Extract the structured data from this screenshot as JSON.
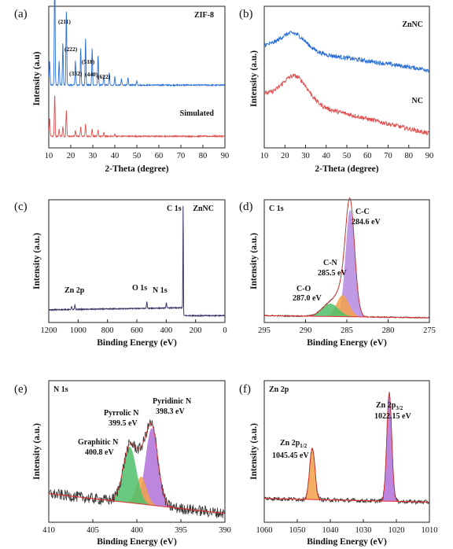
{
  "chart_data": [
    {
      "id": "a",
      "type": "line",
      "panel_label": "(a)",
      "xlabel": "2-Theta (degree)",
      "ylabel": "Intensity (a.u)",
      "xlim": [
        10,
        90
      ],
      "xticks": [
        10,
        20,
        30,
        40,
        50,
        60,
        70,
        80,
        90
      ],
      "legend": [
        "ZIF-8",
        "Simulated"
      ],
      "peak_labels": [
        {
          "text": "(211)",
          "x": 12.7
        },
        {
          "text": "(222)",
          "x": 18.0
        },
        {
          "text": "(332)",
          "x": 24.5
        },
        {
          "text": "(518)",
          "x": 26.7
        },
        {
          "text": "(440)",
          "x": 29.7
        },
        {
          "text": "(622)",
          "x": 32.4
        }
      ],
      "series": [
        {
          "name": "ZIF-8",
          "color": "#2a6fd6",
          "baseline": 0.42,
          "peaks": [
            [
              7.3,
              0.32
            ],
            [
              10.4,
              0.2
            ],
            [
              12.7,
              1.0
            ],
            [
              14.7,
              0.2
            ],
            [
              16.4,
              0.35
            ],
            [
              18.0,
              0.62
            ],
            [
              22.1,
              0.2
            ],
            [
              24.5,
              0.3
            ],
            [
              26.7,
              0.38
            ],
            [
              29.7,
              0.3
            ],
            [
              32.4,
              0.25
            ],
            [
              35,
              0.08
            ],
            [
              37.5,
              0.1
            ],
            [
              40,
              0.07
            ],
            [
              43,
              0.05
            ],
            [
              46,
              0.06
            ],
            [
              50,
              0.04
            ]
          ]
        },
        {
          "name": "Simulated",
          "color": "#e05050",
          "baseline": 0.0,
          "peaks": [
            [
              7.3,
              0.05
            ],
            [
              10.4,
              0.15
            ],
            [
              12.7,
              0.35
            ],
            [
              14.7,
              0.06
            ],
            [
              16.4,
              0.08
            ],
            [
              18.0,
              0.22
            ],
            [
              22.1,
              0.05
            ],
            [
              24.5,
              0.08
            ],
            [
              26.7,
              0.1
            ],
            [
              29.7,
              0.06
            ],
            [
              32.4,
              0.05
            ],
            [
              35,
              0.03
            ],
            [
              40,
              0.02
            ]
          ]
        }
      ]
    },
    {
      "id": "b",
      "type": "line",
      "panel_label": "(b)",
      "xlabel": "2-Theta (degree)",
      "ylabel": "Intensity (a.u.)",
      "xlim": [
        10,
        90
      ],
      "xticks": [
        10,
        20,
        30,
        40,
        50,
        60,
        70,
        80,
        90
      ],
      "legend": [
        "ZnNC",
        "NC"
      ],
      "series": [
        {
          "name": "ZnNC",
          "color": "#2a6fd6",
          "base_start": 0.72,
          "base_end": 0.55,
          "hump_center": 24,
          "hump_height": 0.12,
          "hump_width": 6
        },
        {
          "name": "NC",
          "color": "#e05050",
          "base_start": 0.38,
          "base_end": 0.1,
          "hump_center": 25,
          "hump_height": 0.18,
          "hump_width": 6
        }
      ]
    },
    {
      "id": "c",
      "type": "line",
      "panel_label": "(c)",
      "xlabel": "Binding Energy (eV)",
      "ylabel": "Intensity (a.u.)",
      "xlim": [
        1200,
        0
      ],
      "xticks": [
        1200,
        1000,
        800,
        600,
        400,
        200,
        0
      ],
      "legend": [
        "ZnNC"
      ],
      "peak_labels": [
        {
          "text": "C 1s",
          "x": 284.6
        },
        {
          "text": "O 1s",
          "x": 532
        },
        {
          "text": "N 1s",
          "x": 399
        },
        {
          "text": "Zn 2p",
          "x": 1022
        }
      ],
      "series": [
        {
          "name": "ZnNC",
          "color": "#3a3a6a",
          "peaks": [
            [
              284.6,
              1.0
            ],
            [
              532,
              0.06
            ],
            [
              399,
              0.05
            ],
            [
              1022,
              0.04
            ],
            [
              1045,
              0.03
            ]
          ]
        }
      ]
    },
    {
      "id": "d",
      "type": "line",
      "panel_label": "(d)",
      "title_in_plot": "C 1s",
      "xlabel": "Binding Energy (eV)",
      "ylabel": "Intensity (a.u.)",
      "xlim": [
        295,
        275
      ],
      "xticks": [
        295,
        290,
        285,
        280,
        275
      ],
      "components": [
        {
          "name": "C-C",
          "energy": "284.6 eV",
          "center": 284.6,
          "height": 1.0,
          "width": 0.55,
          "color": "#b58ae0"
        },
        {
          "name": "C-N",
          "energy": "285.5 eV",
          "center": 285.5,
          "height": 0.2,
          "width": 0.75,
          "color": "#f2a14a"
        },
        {
          "name": "C-O",
          "energy": "287.0 eV",
          "center": 287.0,
          "height": 0.12,
          "width": 1.0,
          "color": "#4fbf6a"
        }
      ]
    },
    {
      "id": "e",
      "type": "line",
      "panel_label": "(e)",
      "title_in_plot": "N 1s",
      "xlabel": "Binding Energy (eV)",
      "ylabel": "Intensity (a.u.)",
      "xlim": [
        410,
        390
      ],
      "xticks": [
        410,
        405,
        400,
        395,
        390
      ],
      "components": [
        {
          "name": "Pyridinic N",
          "energy": "398.3 eV",
          "center": 398.3,
          "height": 0.62,
          "width": 0.7,
          "color": "#b070d8"
        },
        {
          "name": "Pyrrolic N",
          "energy": "399.5 eV",
          "center": 399.5,
          "height": 0.22,
          "width": 0.6,
          "color": "#f2a14a"
        },
        {
          "name": "Graphitic N",
          "energy": "400.8 eV",
          "center": 400.8,
          "height": 0.45,
          "width": 0.75,
          "color": "#4fbf6a"
        }
      ]
    },
    {
      "id": "f",
      "type": "line",
      "panel_label": "(f)",
      "title_in_plot": "Zn 2p",
      "xlabel": "Binding Energy (eV)",
      "ylabel": "Intensity (a.u.)",
      "xlim": [
        1060,
        1010
      ],
      "xticks": [
        1060,
        1050,
        1040,
        1030,
        1020,
        1010
      ],
      "components": [
        {
          "name": "Zn 2p",
          "sub": "1/2",
          "energy": "1045.45 eV",
          "center": 1045.45,
          "height": 0.42,
          "width": 0.8,
          "color": "#f2a14a"
        },
        {
          "name": "Zn 2p",
          "sub": "3/2",
          "energy": "1022.15 eV",
          "center": 1022.15,
          "height": 0.88,
          "width": 0.75,
          "color": "#b070d8"
        }
      ]
    }
  ]
}
